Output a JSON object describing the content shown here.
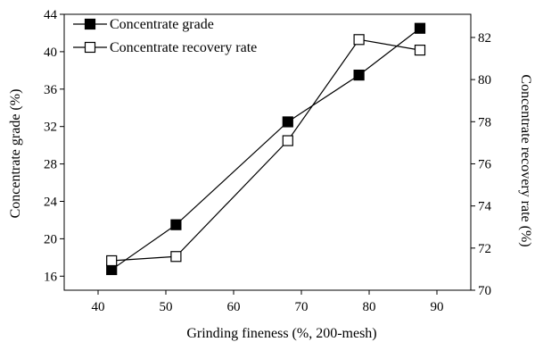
{
  "chart_data": {
    "type": "line",
    "x": [
      42,
      51.5,
      68,
      78.5,
      87.5
    ],
    "xlim": [
      35,
      95
    ],
    "xticks": [
      40,
      50,
      60,
      70,
      80,
      90
    ],
    "xlabel": "Grinding fineness (%, 200-mesh)",
    "axes": {
      "left": {
        "label": "Concentrate grade (%)",
        "lim": [
          14.5,
          44
        ],
        "ticks": [
          16,
          20,
          24,
          28,
          32,
          36,
          40,
          44
        ]
      },
      "right": {
        "label": "Concentrate recovery rate (%)",
        "lim": [
          70,
          83.1
        ],
        "ticks": [
          70,
          72,
          74,
          76,
          78,
          80,
          82
        ]
      }
    },
    "series": [
      {
        "name": "Concentrate grade",
        "axis": "left",
        "marker": "filled-square",
        "values": [
          16.7,
          21.5,
          32.5,
          37.5,
          42.5
        ]
      },
      {
        "name": "Concentrate recovery rate",
        "axis": "right",
        "marker": "open-square",
        "values": [
          71.4,
          71.6,
          77.1,
          81.9,
          81.4
        ]
      }
    ],
    "legend": "top-left",
    "grid": false
  }
}
